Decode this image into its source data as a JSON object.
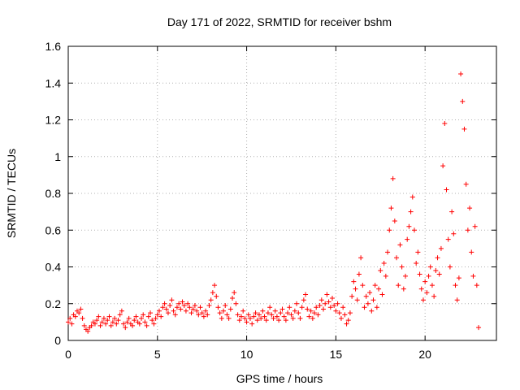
{
  "chart_data": {
    "type": "scatter",
    "title": "Day 171 of 2022, SRMTID for receiver bshm",
    "xlabel": "GPS time / hours",
    "ylabel": "SRMTID / TECUs",
    "xlim": [
      0,
      24
    ],
    "ylim": [
      0,
      1.6
    ],
    "xticks": [
      0,
      5,
      10,
      15,
      20
    ],
    "xtick_labels": [
      "0",
      "5",
      "10",
      "15",
      "20"
    ],
    "yticks": [
      0,
      0.2,
      0.4,
      0.6,
      0.8,
      1.0,
      1.2,
      1.4,
      1.6
    ],
    "ytick_labels": [
      "0",
      "0.2",
      "0.4",
      "0.6",
      "0.8",
      "1",
      "1.2",
      "1.4",
      "1.6"
    ],
    "grid": true,
    "marker": "plus",
    "color": "#ff0000",
    "series": [
      {
        "name": "SRMTID",
        "points": [
          [
            0.0,
            0.1
          ],
          [
            0.1,
            0.12
          ],
          [
            0.2,
            0.09
          ],
          [
            0.3,
            0.14
          ],
          [
            0.4,
            0.13
          ],
          [
            0.5,
            0.16
          ],
          [
            0.6,
            0.15
          ],
          [
            0.7,
            0.17
          ],
          [
            0.8,
            0.12
          ],
          [
            0.9,
            0.08
          ],
          [
            1.0,
            0.06
          ],
          [
            1.1,
            0.05
          ],
          [
            1.2,
            0.07
          ],
          [
            1.3,
            0.08
          ],
          [
            1.4,
            0.1
          ],
          [
            1.5,
            0.09
          ],
          [
            1.6,
            0.11
          ],
          [
            1.7,
            0.13
          ],
          [
            1.8,
            0.08
          ],
          [
            1.9,
            0.1
          ],
          [
            2.0,
            0.12
          ],
          [
            2.1,
            0.09
          ],
          [
            2.2,
            0.11
          ],
          [
            2.3,
            0.13
          ],
          [
            2.4,
            0.08
          ],
          [
            2.5,
            0.1
          ],
          [
            2.6,
            0.12
          ],
          [
            2.7,
            0.09
          ],
          [
            2.8,
            0.11
          ],
          [
            2.9,
            0.14
          ],
          [
            3.0,
            0.16
          ],
          [
            3.1,
            0.09
          ],
          [
            3.2,
            0.07
          ],
          [
            3.3,
            0.1
          ],
          [
            3.4,
            0.12
          ],
          [
            3.5,
            0.09
          ],
          [
            3.6,
            0.08
          ],
          [
            3.7,
            0.11
          ],
          [
            3.8,
            0.13
          ],
          [
            3.9,
            0.1
          ],
          [
            4.0,
            0.09
          ],
          [
            4.1,
            0.12
          ],
          [
            4.2,
            0.14
          ],
          [
            4.3,
            0.1
          ],
          [
            4.4,
            0.08
          ],
          [
            4.5,
            0.13
          ],
          [
            4.6,
            0.15
          ],
          [
            4.7,
            0.11
          ],
          [
            4.8,
            0.09
          ],
          [
            4.9,
            0.12
          ],
          [
            5.0,
            0.14
          ],
          [
            5.1,
            0.16
          ],
          [
            5.2,
            0.13
          ],
          [
            5.3,
            0.18
          ],
          [
            5.4,
            0.2
          ],
          [
            5.5,
            0.17
          ],
          [
            5.6,
            0.15
          ],
          [
            5.7,
            0.19
          ],
          [
            5.8,
            0.22
          ],
          [
            5.9,
            0.16
          ],
          [
            6.0,
            0.14
          ],
          [
            6.1,
            0.18
          ],
          [
            6.2,
            0.2
          ],
          [
            6.3,
            0.17
          ],
          [
            6.4,
            0.21
          ],
          [
            6.5,
            0.19
          ],
          [
            6.6,
            0.16
          ],
          [
            6.7,
            0.2
          ],
          [
            6.8,
            0.18
          ],
          [
            6.9,
            0.15
          ],
          [
            7.0,
            0.17
          ],
          [
            7.1,
            0.19
          ],
          [
            7.2,
            0.16
          ],
          [
            7.3,
            0.14
          ],
          [
            7.4,
            0.18
          ],
          [
            7.5,
            0.15
          ],
          [
            7.6,
            0.13
          ],
          [
            7.7,
            0.16
          ],
          [
            7.8,
            0.14
          ],
          [
            7.9,
            0.19
          ],
          [
            8.0,
            0.22
          ],
          [
            8.1,
            0.26
          ],
          [
            8.2,
            0.3
          ],
          [
            8.3,
            0.24
          ],
          [
            8.4,
            0.18
          ],
          [
            8.5,
            0.15
          ],
          [
            8.6,
            0.12
          ],
          [
            8.7,
            0.16
          ],
          [
            8.8,
            0.19
          ],
          [
            8.9,
            0.14
          ],
          [
            9.0,
            0.12
          ],
          [
            9.1,
            0.17
          ],
          [
            9.2,
            0.23
          ],
          [
            9.3,
            0.26
          ],
          [
            9.4,
            0.2
          ],
          [
            9.5,
            0.14
          ],
          [
            9.6,
            0.11
          ],
          [
            9.7,
            0.13
          ],
          [
            9.8,
            0.16
          ],
          [
            9.9,
            0.12
          ],
          [
            10.0,
            0.1
          ],
          [
            10.1,
            0.14
          ],
          [
            10.2,
            0.12
          ],
          [
            10.3,
            0.09
          ],
          [
            10.4,
            0.13
          ],
          [
            10.5,
            0.15
          ],
          [
            10.6,
            0.11
          ],
          [
            10.7,
            0.14
          ],
          [
            10.8,
            0.12
          ],
          [
            10.9,
            0.16
          ],
          [
            11.0,
            0.13
          ],
          [
            11.1,
            0.11
          ],
          [
            11.2,
            0.15
          ],
          [
            11.3,
            0.18
          ],
          [
            11.4,
            0.14
          ],
          [
            11.5,
            0.12
          ],
          [
            11.6,
            0.16
          ],
          [
            11.7,
            0.13
          ],
          [
            11.8,
            0.11
          ],
          [
            11.9,
            0.15
          ],
          [
            12.0,
            0.17
          ],
          [
            12.1,
            0.13
          ],
          [
            12.2,
            0.11
          ],
          [
            12.3,
            0.15
          ],
          [
            12.4,
            0.18
          ],
          [
            12.5,
            0.14
          ],
          [
            12.6,
            0.12
          ],
          [
            12.7,
            0.16
          ],
          [
            12.8,
            0.2
          ],
          [
            12.9,
            0.15
          ],
          [
            13.0,
            0.12
          ],
          [
            13.1,
            0.18
          ],
          [
            13.2,
            0.22
          ],
          [
            13.3,
            0.25
          ],
          [
            13.4,
            0.17
          ],
          [
            13.5,
            0.13
          ],
          [
            13.6,
            0.16
          ],
          [
            13.7,
            0.12
          ],
          [
            13.8,
            0.15
          ],
          [
            13.9,
            0.18
          ],
          [
            14.0,
            0.14
          ],
          [
            14.1,
            0.19
          ],
          [
            14.2,
            0.22
          ],
          [
            14.3,
            0.17
          ],
          [
            14.4,
            0.2
          ],
          [
            14.5,
            0.25
          ],
          [
            14.6,
            0.21
          ],
          [
            14.7,
            0.18
          ],
          [
            14.8,
            0.23
          ],
          [
            14.9,
            0.19
          ],
          [
            15.0,
            0.16
          ],
          [
            15.1,
            0.2
          ],
          [
            15.2,
            0.15
          ],
          [
            15.3,
            0.12
          ],
          [
            15.4,
            0.18
          ],
          [
            15.5,
            0.14
          ],
          [
            15.6,
            0.09
          ],
          [
            15.7,
            0.11
          ],
          [
            15.8,
            0.15
          ],
          [
            15.9,
            0.24
          ],
          [
            16.0,
            0.32
          ],
          [
            16.1,
            0.28
          ],
          [
            16.2,
            0.22
          ],
          [
            16.3,
            0.36
          ],
          [
            16.4,
            0.45
          ],
          [
            16.5,
            0.3
          ],
          [
            16.6,
            0.18
          ],
          [
            16.7,
            0.24
          ],
          [
            16.8,
            0.2
          ],
          [
            16.9,
            0.26
          ],
          [
            17.0,
            0.16
          ],
          [
            17.1,
            0.22
          ],
          [
            17.2,
            0.3
          ],
          [
            17.3,
            0.18
          ],
          [
            17.4,
            0.28
          ],
          [
            17.5,
            0.38
          ],
          [
            17.6,
            0.25
          ],
          [
            17.7,
            0.42
          ],
          [
            17.8,
            0.35
          ],
          [
            17.9,
            0.48
          ],
          [
            18.0,
            0.6
          ],
          [
            18.1,
            0.72
          ],
          [
            18.2,
            0.88
          ],
          [
            18.3,
            0.65
          ],
          [
            18.4,
            0.45
          ],
          [
            18.5,
            0.3
          ],
          [
            18.6,
            0.52
          ],
          [
            18.7,
            0.4
          ],
          [
            18.8,
            0.28
          ],
          [
            18.9,
            0.35
          ],
          [
            19.0,
            0.55
          ],
          [
            19.1,
            0.62
          ],
          [
            19.2,
            0.7
          ],
          [
            19.3,
            0.78
          ],
          [
            19.4,
            0.6
          ],
          [
            19.5,
            0.42
          ],
          [
            19.6,
            0.48
          ],
          [
            19.7,
            0.36
          ],
          [
            19.8,
            0.28
          ],
          [
            19.9,
            0.22
          ],
          [
            20.0,
            0.32
          ],
          [
            20.1,
            0.26
          ],
          [
            20.2,
            0.35
          ],
          [
            20.3,
            0.4
          ],
          [
            20.4,
            0.3
          ],
          [
            20.5,
            0.24
          ],
          [
            20.6,
            0.38
          ],
          [
            20.7,
            0.45
          ],
          [
            20.8,
            0.36
          ],
          [
            20.9,
            0.5
          ],
          [
            21.0,
            0.95
          ],
          [
            21.1,
            1.18
          ],
          [
            21.2,
            0.82
          ],
          [
            21.3,
            0.55
          ],
          [
            21.4,
            0.4
          ],
          [
            21.5,
            0.7
          ],
          [
            21.6,
            0.58
          ],
          [
            21.7,
            0.3
          ],
          [
            21.8,
            0.22
          ],
          [
            21.9,
            0.34
          ],
          [
            22.0,
            1.45
          ],
          [
            22.1,
            1.3
          ],
          [
            22.2,
            1.15
          ],
          [
            22.3,
            0.85
          ],
          [
            22.4,
            0.6
          ],
          [
            22.5,
            0.72
          ],
          [
            22.6,
            0.48
          ],
          [
            22.7,
            0.35
          ],
          [
            22.8,
            0.62
          ],
          [
            22.9,
            0.3
          ],
          [
            23.0,
            0.07
          ]
        ]
      }
    ]
  }
}
